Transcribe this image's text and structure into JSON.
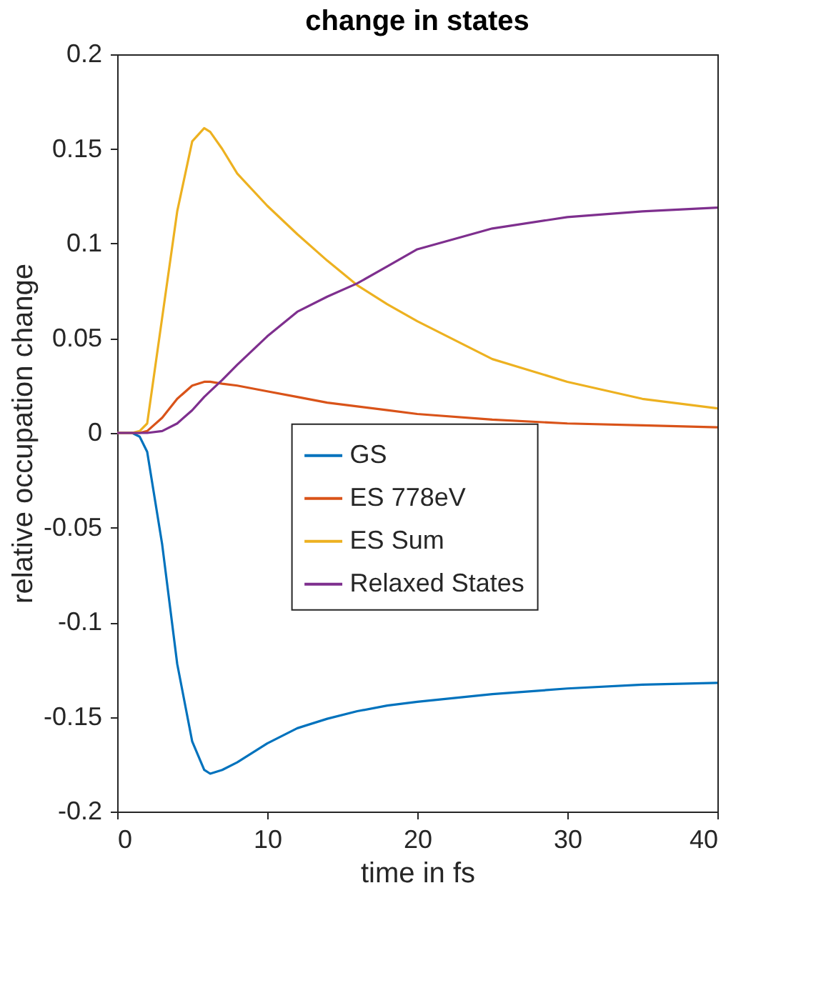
{
  "chart_data": {
    "type": "line",
    "title": "change in states",
    "xlabel": "time in fs",
    "ylabel": "relative occupation change",
    "x": [
      0,
      1,
      1.5,
      2,
      3,
      4,
      5,
      5.8,
      6.2,
      7,
      8,
      10,
      12,
      14,
      16,
      18,
      20,
      25,
      30,
      35,
      40
    ],
    "series": [
      {
        "name": "GS",
        "color": "#0072bd",
        "values": [
          0,
          0,
          -0.002,
          -0.01,
          -0.059,
          -0.122,
          -0.163,
          -0.178,
          -0.18,
          -0.178,
          -0.174,
          -0.164,
          -0.156,
          -0.151,
          -0.147,
          -0.144,
          -0.142,
          -0.138,
          -0.135,
          -0.133,
          -0.132
        ]
      },
      {
        "name": "ES 778eV",
        "color": "#d95319",
        "values": [
          0,
          0,
          0,
          0.001,
          0.008,
          0.018,
          0.025,
          0.027,
          0.027,
          0.026,
          0.025,
          0.022,
          0.019,
          0.016,
          0.014,
          0.012,
          0.01,
          0.007,
          0.005,
          0.004,
          0.003
        ]
      },
      {
        "name": "ES Sum",
        "color": "#edb120",
        "values": [
          0,
          0,
          0.001,
          0.005,
          0.061,
          0.117,
          0.154,
          0.161,
          0.159,
          0.15,
          0.137,
          0.12,
          0.105,
          0.091,
          0.078,
          0.068,
          0.059,
          0.039,
          0.027,
          0.018,
          0.013
        ]
      },
      {
        "name": "Relaxed States",
        "color": "#7e2f8e",
        "values": [
          0,
          0,
          0,
          0,
          0.001,
          0.005,
          0.012,
          0.019,
          0.022,
          0.028,
          0.036,
          0.051,
          0.064,
          0.072,
          0.079,
          0.088,
          0.097,
          0.108,
          0.114,
          0.117,
          0.119
        ]
      }
    ],
    "xlim": [
      0,
      40
    ],
    "xticks": [
      0,
      10,
      20,
      30,
      40
    ],
    "ylim": [
      -0.2,
      0.2
    ],
    "yticks": [
      -0.2,
      -0.15,
      -0.1,
      -0.05,
      0,
      0.05,
      0.1,
      0.15,
      0.2
    ],
    "grid": false,
    "legend": "bottom right",
    "line_style": "solid",
    "marker": "none"
  }
}
